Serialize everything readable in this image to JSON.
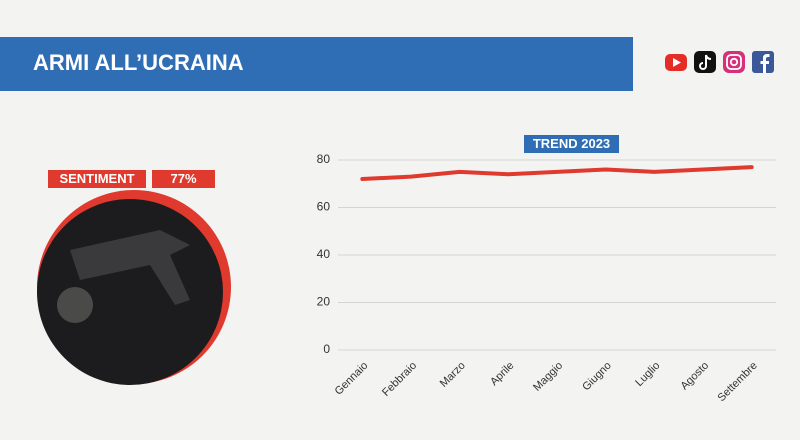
{
  "header": {
    "title": "ARMI ALL’UCRAINA"
  },
  "sentiment": {
    "label": "SENTIMENT",
    "value_text": "77%"
  },
  "chart_data": {
    "type": "line",
    "title": "TREND 2023",
    "categories": [
      "Gennaio",
      "Febbraio",
      "Marzo",
      "Aprile",
      "Maggio",
      "Giugno",
      "Luglio",
      "Agosto",
      "Settembre"
    ],
    "series": [
      {
        "name": "Sentiment",
        "color": "#e03a2f",
        "values": [
          72,
          73,
          75,
          74,
          75,
          76,
          75,
          76,
          77
        ]
      }
    ],
    "ylim": [
      0,
      80
    ],
    "yticks": [
      0,
      20,
      40,
      60,
      80
    ],
    "grid": true
  }
}
